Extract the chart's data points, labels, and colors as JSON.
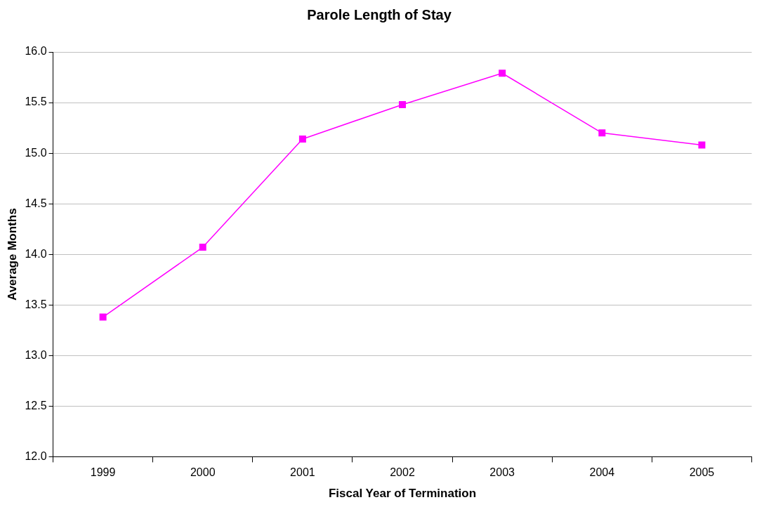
{
  "chart_data": {
    "type": "line",
    "title": "Parole Length of Stay",
    "xlabel": "Fiscal Year of Termination",
    "ylabel": "Average Months",
    "categories": [
      "1999",
      "2000",
      "2001",
      "2002",
      "2003",
      "2004",
      "2005"
    ],
    "series": [
      {
        "color": "#ff00ff",
        "values": [
          13.38,
          14.07,
          15.14,
          15.48,
          15.79,
          15.2,
          15.08
        ]
      }
    ],
    "ylim": [
      12,
      16
    ],
    "yticks": [
      {
        "value": 12,
        "label": "12.0"
      },
      {
        "value": 12.5,
        "label": "12.5"
      },
      {
        "value": 13,
        "label": "13.0"
      },
      {
        "value": 13.5,
        "label": "13.5"
      },
      {
        "value": 14,
        "label": "14.0"
      },
      {
        "value": 14.5,
        "label": "14.5"
      },
      {
        "value": 15,
        "label": "15.0"
      },
      {
        "value": 15.5,
        "label": "15.5"
      },
      {
        "value": 16,
        "label": "16.0"
      }
    ],
    "grid": "y",
    "legend": false,
    "marker": "square",
    "line_style": "solid"
  }
}
